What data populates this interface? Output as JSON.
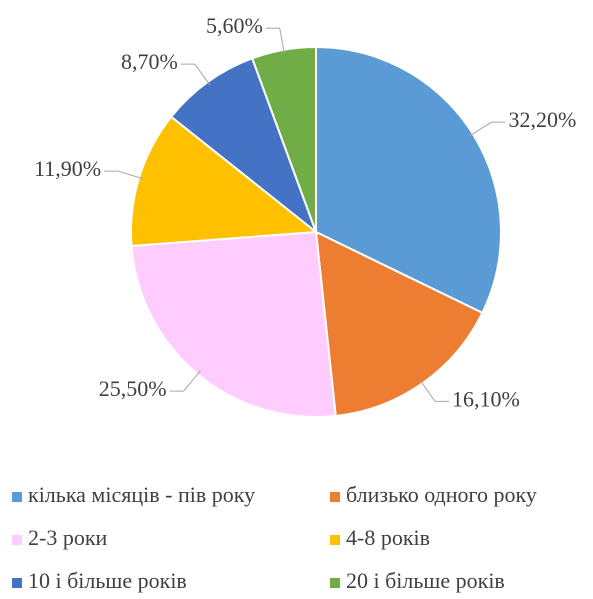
{
  "chart_data": {
    "type": "pie",
    "categories": [
      "кілька місяців - пів року",
      "близько одного року",
      "2-3 роки",
      "4-8 років",
      "10 і більше років",
      "20 і більше років"
    ],
    "values": [
      32.2,
      16.1,
      25.5,
      11.9,
      8.7,
      5.6
    ],
    "value_labels": [
      "32,20%",
      "16,10%",
      "25,50%",
      "11,90%",
      "8,70%",
      "5,60%"
    ],
    "colors": [
      "#5b9bd5",
      "#ed7d31",
      "#ffccff",
      "#ffc000",
      "#4472c4",
      "#70ad47"
    ],
    "legend": "bottom"
  }
}
